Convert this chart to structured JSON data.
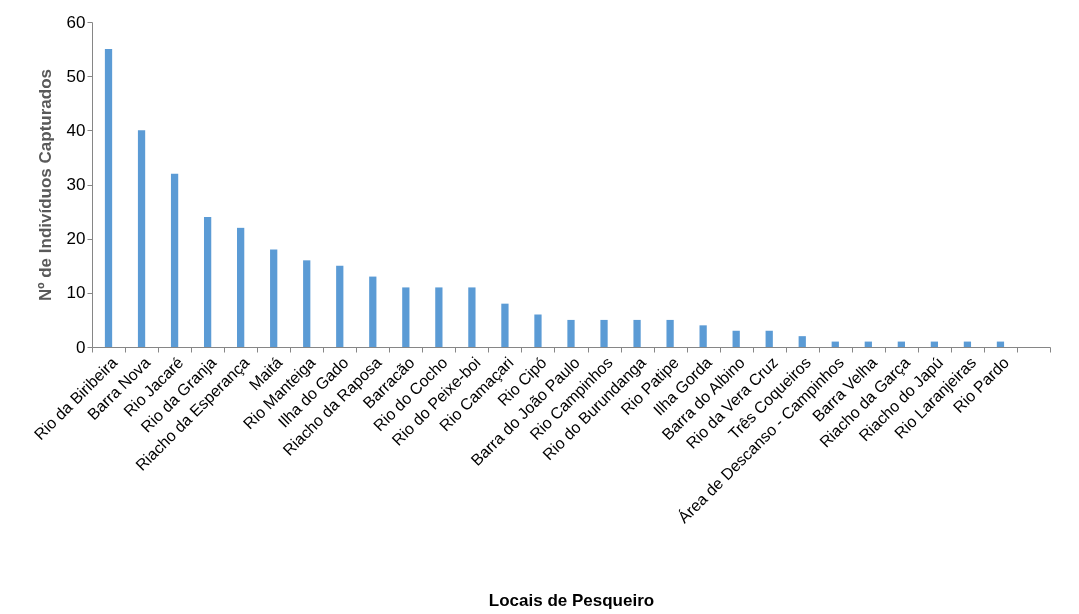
{
  "chart_data": {
    "type": "bar",
    "xlabel": "Locais de Pesqueiro",
    "ylabel": "Nº de Indivíduos Capturados",
    "categories": [
      "Rio da Biribeira",
      "Barra Nova",
      "Rio Jacaré",
      "Rio da Granja",
      "Riacho da Esperança",
      "Maitá",
      "Rio Manteiga",
      "Ilha do Gado",
      "Riacho da Raposa",
      "Barracão",
      "Rio do Cocho",
      "Rio do Peixe-boi",
      "Rio Camaçari",
      "Rio Cipó",
      "Barra do João Paulo",
      "Rio Campinhos",
      "Rio do Burundanga",
      "Rio Patipe",
      "Ilha Gorda",
      "Barra do Albino",
      "Rio da Vera Cruz",
      "Três Coqueiros",
      "Área de Descanso - Campinhos",
      "Barra Velha",
      "Riacho da Garça",
      "Riacho do Japú",
      "Rio Laranjeiras",
      "Rio Pardo",
      null
    ],
    "values": [
      55,
      40,
      32,
      24,
      22,
      18,
      16,
      15,
      13,
      11,
      11,
      11,
      8,
      6,
      5,
      5,
      5,
      5,
      4,
      3,
      3,
      2,
      1,
      1,
      1,
      1,
      1,
      1,
      null
    ],
    "color": "#5b9bd5",
    "ylim": [
      0,
      60
    ],
    "yticks": [
      0,
      10,
      20,
      30,
      40,
      50,
      60
    ],
    "grid": false
  }
}
